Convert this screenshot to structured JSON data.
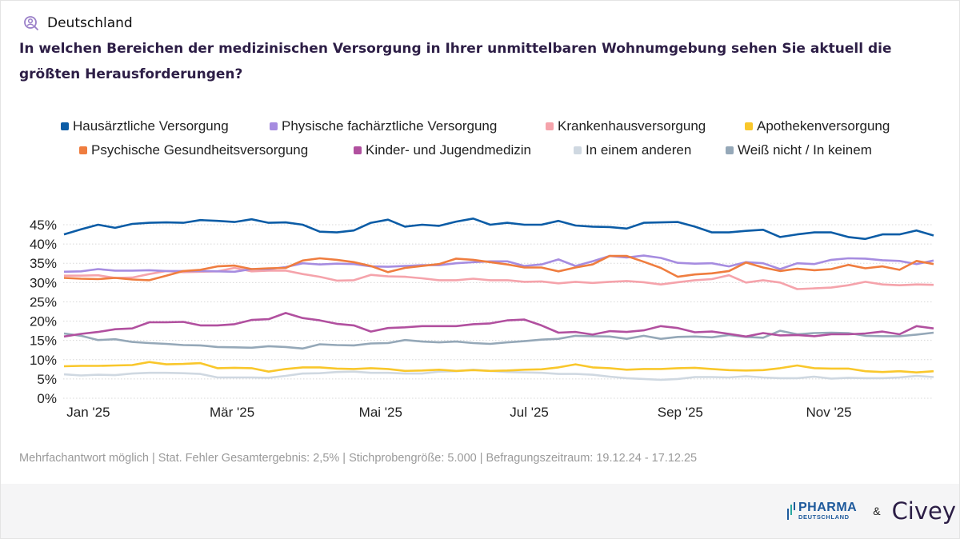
{
  "header": {
    "region": "Deutschland",
    "region_icon": "user-search-icon",
    "question": "In welchen Bereichen der medizinischen Versorgung in Ihrer unmittelbaren Wohnumgebung sehen Sie aktuell die größten Herausforderungen?"
  },
  "footnote": "Mehrfachantwort möglich | Stat. Fehler Gesamtergebnis: 2,5% | Stichprobengröße: 5.000 | Befragungszeitraum: 19.12.24 - 17.12.25",
  "logos": {
    "pharma_top": "PHARMA",
    "pharma_bottom": "DEUTSCHLAND",
    "amp": "&",
    "civey": "Civey"
  },
  "chart_data": {
    "type": "line",
    "legend_position": "top",
    "grid": true,
    "ylim": [
      0,
      45
    ],
    "yticks": [
      "0%",
      "5%",
      "10%",
      "15%",
      "20%",
      "25%",
      "30%",
      "35%",
      "40%",
      "45%"
    ],
    "xticks": [
      {
        "label": "Jan '25",
        "date": "2025-01-01"
      },
      {
        "label": "Mär '25",
        "date": "2025-03-01"
      },
      {
        "label": "Mai '25",
        "date": "2025-05-01"
      },
      {
        "label": "Jul '25",
        "date": "2025-07-01"
      },
      {
        "label": "Sep '25",
        "date": "2025-09-01"
      },
      {
        "label": "Nov '25",
        "date": "2025-11-01"
      }
    ],
    "x": [
      "2024-12-22",
      "2024-12-29",
      "2025-01-05",
      "2025-01-12",
      "2025-01-19",
      "2025-01-26",
      "2025-02-02",
      "2025-02-09",
      "2025-02-16",
      "2025-02-23",
      "2025-03-02",
      "2025-03-09",
      "2025-03-16",
      "2025-03-23",
      "2025-03-30",
      "2025-04-06",
      "2025-04-13",
      "2025-04-20",
      "2025-04-27",
      "2025-05-04",
      "2025-05-11",
      "2025-05-18",
      "2025-05-25",
      "2025-06-01",
      "2025-06-08",
      "2025-06-15",
      "2025-06-22",
      "2025-06-29",
      "2025-07-06",
      "2025-07-13",
      "2025-07-20",
      "2025-07-27",
      "2025-08-03",
      "2025-08-10",
      "2025-08-17",
      "2025-08-24",
      "2025-08-31",
      "2025-09-07",
      "2025-09-14",
      "2025-09-21",
      "2025-09-28",
      "2025-10-05",
      "2025-10-12",
      "2025-10-19",
      "2025-10-26",
      "2025-11-02",
      "2025-11-09",
      "2025-11-16",
      "2025-11-23",
      "2025-11-30",
      "2025-12-07",
      "2025-12-14"
    ],
    "series": [
      {
        "name": "Hausärztliche Versorgung",
        "color": "#0b5ca6",
        "values": [
          42.5,
          43.8,
          45,
          44.2,
          45.2,
          45.5,
          45.6,
          45.5,
          46.2,
          46,
          45.7,
          46.4,
          45.5,
          45.6,
          45,
          43.2,
          43,
          43.5,
          45.5,
          46.3,
          44.5,
          45,
          44.7,
          45.8,
          46.6,
          45,
          45.5,
          45,
          45,
          46,
          44.8,
          44.5,
          44.4,
          44,
          45.5,
          45.6,
          45.7,
          44.5,
          43,
          43,
          43.4,
          43.7,
          41.8,
          42.5,
          43,
          43,
          41.8,
          41.3,
          42.5,
          42.5,
          43.5,
          42.2
        ]
      },
      {
        "name": "Physische fachärztliche Versorgung",
        "color": "#a68ce0",
        "values": [
          32.8,
          32.9,
          33.5,
          33.1,
          33.1,
          33.2,
          33,
          33,
          33,
          32.9,
          32.8,
          33.5,
          33.5,
          34,
          35,
          34.7,
          34.9,
          34.8,
          34.2,
          34.1,
          34.3,
          34.5,
          34.5,
          35,
          35.3,
          35.5,
          35.5,
          34.3,
          34.7,
          36,
          34.3,
          35.5,
          36.9,
          36.5,
          37,
          36.4,
          35.1,
          34.9,
          35,
          34.2,
          35.3,
          35,
          33.5,
          35,
          34.8,
          35.9,
          36.3,
          36.2,
          35.8,
          35.6,
          34.8,
          35.7
        ]
      },
      {
        "name": "Krankenhausversorgung",
        "color": "#f5a3ab",
        "values": [
          31.8,
          31.8,
          31.9,
          31.2,
          31.3,
          32.2,
          33,
          32.7,
          32.8,
          32.9,
          33.8,
          32.9,
          33.1,
          33.1,
          32.2,
          31.5,
          30.5,
          30.6,
          32,
          31.6,
          31.5,
          31.1,
          30.6,
          30.6,
          31,
          30.6,
          30.6,
          30.2,
          30.3,
          29.8,
          30.2,
          29.9,
          30.2,
          30.4,
          30.1,
          29.5,
          30.1,
          30.6,
          30.9,
          31.9,
          30,
          30.6,
          30,
          28.3,
          28.5,
          28.7,
          29.3,
          30.2,
          29.5,
          29.3,
          29.5,
          29.4
        ]
      },
      {
        "name": "Apothekenversorgung",
        "color": "#f9c72b",
        "values": [
          8.3,
          8.4,
          8.4,
          8.5,
          8.6,
          9.4,
          8.8,
          8.9,
          9.1,
          7.8,
          7.9,
          7.8,
          6.9,
          7.6,
          8,
          8,
          7.7,
          7.6,
          7.8,
          7.6,
          7.1,
          7.2,
          7.4,
          7.1,
          7.3,
          7.1,
          7.2,
          7.4,
          7.5,
          8,
          8.8,
          8,
          7.8,
          7.4,
          7.6,
          7.6,
          7.8,
          7.9,
          7.6,
          7.3,
          7.2,
          7.3,
          7.8,
          8.5,
          7.8,
          7.7,
          7.7,
          7,
          6.8,
          7,
          6.7,
          7
        ]
      },
      {
        "name": "Psychische Gesundheitsversorgung",
        "color": "#ef7d3f",
        "values": [
          31.2,
          31,
          30.9,
          31.2,
          30.8,
          30.6,
          31.8,
          33,
          33.3,
          34.2,
          34.4,
          33.5,
          33.7,
          33.8,
          35.7,
          36.3,
          35.9,
          35.3,
          34.3,
          32.7,
          33.8,
          34.3,
          34.8,
          36.2,
          35.9,
          35.3,
          34.7,
          33.9,
          33.9,
          32.9,
          33.9,
          34.7,
          36.9,
          36.9,
          35.4,
          33.8,
          31.5,
          32.1,
          32.4,
          33,
          35.2,
          33.9,
          33,
          33.6,
          33.2,
          33.5,
          34.6,
          33.7,
          34.2,
          33.3,
          35.6,
          34.8
        ]
      },
      {
        "name": "Kinder- und Jugendmedizin",
        "color": "#b1509f",
        "values": [
          16,
          16.7,
          17.2,
          17.9,
          18.1,
          19.7,
          19.7,
          19.8,
          18.9,
          18.9,
          19.2,
          20.3,
          20.5,
          22.1,
          20.8,
          20.2,
          19.3,
          18.9,
          17.3,
          18.2,
          18.4,
          18.7,
          18.7,
          18.7,
          19.2,
          19.4,
          20.2,
          20.4,
          18.9,
          17,
          17.2,
          16.5,
          17.4,
          17.2,
          17.6,
          18.7,
          18.2,
          17.1,
          17.3,
          16.7,
          16,
          16.9,
          16.3,
          16.4,
          16.1,
          16.6,
          16.6,
          16.8,
          17.3,
          16.6,
          18.7,
          18.1
        ]
      },
      {
        "name": "In einem anderen",
        "color": "#cfd8e1",
        "values": [
          6.2,
          5.9,
          6.1,
          6,
          6.4,
          6.6,
          6.6,
          6.5,
          6.3,
          5.4,
          5.4,
          5.4,
          5.3,
          5.8,
          6.4,
          6.5,
          6.8,
          6.9,
          6.6,
          6.6,
          6.4,
          6.4,
          6.9,
          7,
          7.4,
          7.1,
          6.8,
          6.7,
          6.6,
          6.3,
          6.3,
          6.1,
          5.6,
          5.2,
          5,
          4.8,
          5,
          5.5,
          5.5,
          5.4,
          5.7,
          5.4,
          5.2,
          5.2,
          5.6,
          5.1,
          5.3,
          5.2,
          5.2,
          5.4,
          5.8,
          5.5
        ]
      },
      {
        "name": "Weiß nicht / In keinem",
        "color": "#95a8b8",
        "values": [
          16.8,
          16.2,
          15.1,
          15.3,
          14.6,
          14.3,
          14.1,
          13.8,
          13.7,
          13.3,
          13.2,
          13.1,
          13.5,
          13.3,
          12.9,
          14,
          13.8,
          13.7,
          14.2,
          14.3,
          15.1,
          14.7,
          14.5,
          14.7,
          14.3,
          14.1,
          14.5,
          14.8,
          15.2,
          15.4,
          16.2,
          16.1,
          16,
          15.4,
          16.2,
          15.4,
          15.9,
          16,
          15.8,
          16.4,
          15.9,
          15.7,
          17.5,
          16.6,
          16.9,
          17,
          16.9,
          16.2,
          16.1,
          16.1,
          16.5,
          17
        ]
      }
    ]
  }
}
